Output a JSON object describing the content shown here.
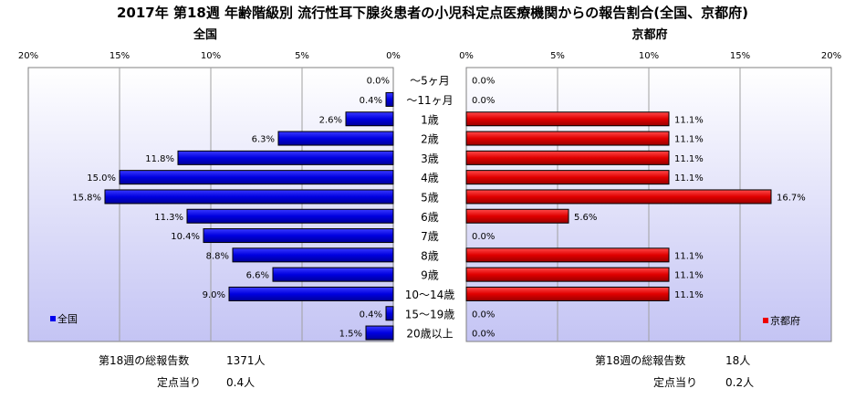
{
  "title": "2017年 第18週 年齢階級別 流行性耳下腺炎患者の小児科定点医療機関からの報告割合(全国、京都府)",
  "chart_data": {
    "type": "bar",
    "orientation": "horizontal",
    "categories": [
      "～5ヶ月",
      "～11ヶ月",
      "1歳",
      "2歳",
      "3歳",
      "4歳",
      "5歳",
      "6歳",
      "7歳",
      "8歳",
      "9歳",
      "10～14歳",
      "15～19歳",
      "20歳以上"
    ],
    "panels": [
      {
        "name": "全国",
        "title": "全国",
        "direction": "reversed",
        "xlim": [
          0,
          20
        ],
        "ticks": [
          "0%",
          "5%",
          "10%",
          "15%",
          "20%"
        ],
        "color": "#0000ee",
        "values": [
          0.0,
          0.4,
          2.6,
          6.3,
          11.8,
          15.0,
          15.8,
          11.3,
          10.4,
          8.8,
          6.6,
          9.0,
          0.4,
          1.5
        ],
        "labels": [
          "0.0%",
          "0.4%",
          "2.6%",
          "6.3%",
          "11.8%",
          "15.0%",
          "15.8%",
          "11.3%",
          "10.4%",
          "8.8%",
          "6.6%",
          "9.0%",
          "0.4%",
          "1.5%"
        ],
        "legend": "全国",
        "legend_position": "bottom-left"
      },
      {
        "name": "京都府",
        "title": "京都府",
        "direction": "normal",
        "xlim": [
          0,
          20
        ],
        "ticks": [
          "0%",
          "5%",
          "10%",
          "15%",
          "20%"
        ],
        "color": "#ee0000",
        "values": [
          0.0,
          0.0,
          11.1,
          11.1,
          11.1,
          11.1,
          16.7,
          5.6,
          0.0,
          11.1,
          11.1,
          11.1,
          0.0,
          0.0
        ],
        "labels": [
          "0.0%",
          "0.0%",
          "11.1%",
          "11.1%",
          "11.1%",
          "11.1%",
          "16.7%",
          "5.6%",
          "0.0%",
          "11.1%",
          "11.1%",
          "11.1%",
          "0.0%",
          "0.0%"
        ],
        "legend": "京都府",
        "legend_position": "bottom-right"
      }
    ],
    "grid": true
  },
  "stats": {
    "national": {
      "total_label": "第18週の総報告数",
      "total_value": "1371人",
      "per_label": "定点当り",
      "per_value": "0.4人"
    },
    "kyoto": {
      "total_label": "第18週の総報告数",
      "total_value": "18人",
      "per_label": "定点当り",
      "per_value": "0.2人"
    }
  },
  "colors": {
    "plot_top": "#ffffff",
    "plot_bottom": "#c4c4f4",
    "national_bar": "#0000ee",
    "kyoto_bar": "#ee0000"
  }
}
